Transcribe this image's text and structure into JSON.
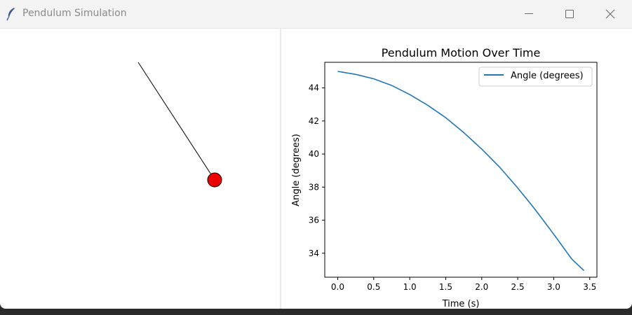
{
  "window": {
    "title": "Pendulum Simulation",
    "icon": "feather-icon"
  },
  "simulation": {
    "bob_color": "#ee0000",
    "rod_color": "#000000"
  },
  "chart_data": {
    "type": "line",
    "title": "Pendulum Motion Over Time",
    "xlabel": "Time (s)",
    "ylabel": "Angle (degrees)",
    "xlim": [
      -0.18,
      3.6
    ],
    "ylim": [
      32.55,
      45.55
    ],
    "xticks": [
      0.0,
      0.5,
      1.0,
      1.5,
      2.0,
      2.5,
      3.0,
      3.5
    ],
    "xtick_labels": [
      "0.0",
      "0.5",
      "1.0",
      "1.5",
      "2.0",
      "2.5",
      "3.0",
      "3.5"
    ],
    "yticks": [
      34,
      36,
      38,
      40,
      42,
      44
    ],
    "ytick_labels": [
      "34",
      "36",
      "38",
      "40",
      "42",
      "44"
    ],
    "legend_position": "top-right",
    "series": [
      {
        "name": "Angle (degrees)",
        "color": "#1f77b4",
        "x": [
          0.0,
          0.25,
          0.5,
          0.75,
          1.0,
          1.25,
          1.5,
          1.75,
          2.0,
          2.25,
          2.5,
          2.75,
          3.0,
          3.25,
          3.42
        ],
        "y": [
          45.0,
          44.82,
          44.55,
          44.15,
          43.6,
          42.95,
          42.2,
          41.3,
          40.3,
          39.2,
          37.95,
          36.6,
          35.15,
          33.65,
          32.95
        ]
      }
    ]
  }
}
